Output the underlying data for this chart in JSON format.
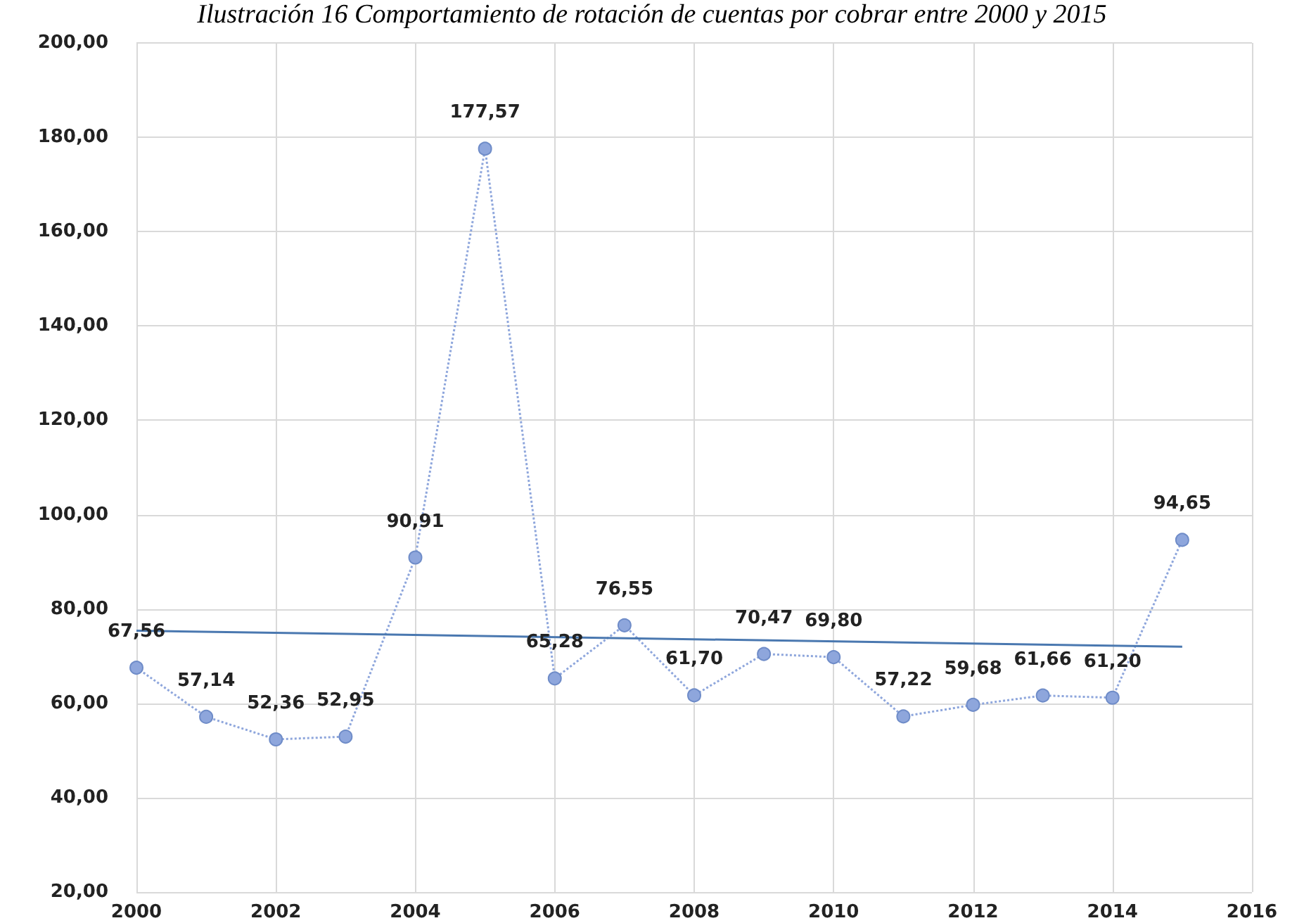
{
  "chart_data": {
    "type": "line",
    "title": "Ilustración 16 Comportamiento de rotación de cuentas por cobrar entre 2000 y 2015",
    "xlim": [
      2000,
      2016
    ],
    "xticks": [
      2000,
      2002,
      2004,
      2006,
      2008,
      2010,
      2012,
      2014,
      2016
    ],
    "ylim": [
      20,
      200
    ],
    "yticks": [
      {
        "value": 20,
        "label": "20,00"
      },
      {
        "value": 40,
        "label": "40,00"
      },
      {
        "value": 60,
        "label": "60,00"
      },
      {
        "value": 80,
        "label": "80,00"
      },
      {
        "value": 100,
        "label": "100,00"
      },
      {
        "value": 120,
        "label": "120,00"
      },
      {
        "value": 140,
        "label": "140,00"
      },
      {
        "value": 160,
        "label": "160,00"
      },
      {
        "value": 180,
        "label": "180,00"
      },
      {
        "value": 200,
        "label": "200,00"
      }
    ],
    "grid": true,
    "series": [
      {
        "color": "#8ea6dc",
        "marker": "circle",
        "line_style": "dotted",
        "x": [
          2000,
          2001,
          2002,
          2003,
          2004,
          2005,
          2006,
          2007,
          2008,
          2009,
          2010,
          2011,
          2012,
          2013,
          2014,
          2015
        ],
        "values": [
          67.56,
          57.14,
          52.36,
          52.95,
          90.91,
          177.57,
          65.28,
          76.55,
          61.7,
          70.47,
          69.8,
          57.22,
          59.68,
          61.66,
          61.2,
          94.65
        ],
        "value_labels": [
          "67,56",
          "57,14",
          "52,36",
          "52,95",
          "90,91",
          "177,57",
          "65,28",
          "76,55",
          "61,70",
          "70,47",
          "69,80",
          "57,22",
          "59,68",
          "61,66",
          "61,20",
          "94,65"
        ]
      },
      {
        "color": "#4a78b0",
        "marker": "none",
        "line_style": "solid",
        "x": [
          2000,
          2015
        ],
        "values": [
          75.4,
          72.0
        ]
      }
    ]
  }
}
